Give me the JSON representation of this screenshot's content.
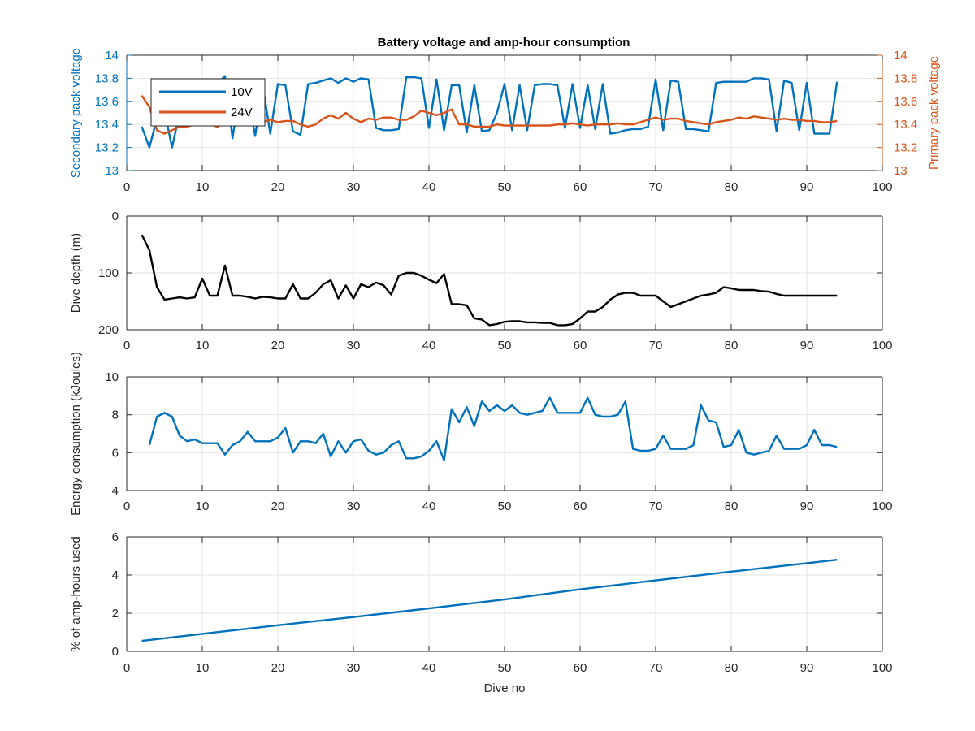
{
  "figure": {
    "title": "Battery voltage and amp-hour consumption"
  },
  "colors": {
    "blue": "#0072BD",
    "orange": "#D95319",
    "black": "#000000",
    "grid": "#e3e3e3",
    "axis": "#262626"
  },
  "chart_data": [
    {
      "type": "line",
      "title": "Battery voltage and amp-hour consumption",
      "xlabel": "",
      "ylabel": "Secondary pack voltage",
      "ylabel_right": "Primary pack voltage",
      "xlim": [
        0,
        100
      ],
      "ylim": [
        13,
        14
      ],
      "ylim_right": [
        13,
        14
      ],
      "xticks": [
        0,
        10,
        20,
        30,
        40,
        50,
        60,
        70,
        80,
        90,
        100
      ],
      "yticks": [
        13,
        13.2,
        13.4,
        13.6,
        13.8,
        14
      ],
      "yticks_right": [
        13,
        13.2,
        13.4,
        13.6,
        13.8,
        14
      ],
      "grid": true,
      "legend": "top-left",
      "series": [
        {
          "name": "10V",
          "axis": "left",
          "color": "#0072BD",
          "x": [
            2,
            3,
            4,
            5,
            6,
            7,
            8,
            9,
            10,
            11,
            12,
            13,
            14,
            15,
            16,
            17,
            18,
            19,
            20,
            21,
            22,
            23,
            24,
            25,
            26,
            27,
            28,
            29,
            30,
            31,
            32,
            33,
            34,
            35,
            36,
            37,
            38,
            39,
            40,
            41,
            42,
            43,
            44,
            45,
            46,
            47,
            48,
            49,
            50,
            51,
            52,
            53,
            54,
            55,
            56,
            57,
            58,
            59,
            60,
            61,
            62,
            63,
            64,
            65,
            66,
            67,
            68,
            69,
            70,
            71,
            72,
            73,
            74,
            75,
            76,
            77,
            78,
            79,
            80,
            81,
            82,
            83,
            84,
            85,
            86,
            87,
            88,
            89,
            90,
            91,
            92,
            93,
            94
          ],
          "values": [
            13.38,
            13.2,
            13.45,
            13.52,
            13.2,
            13.5,
            13.45,
            13.58,
            13.62,
            13.7,
            13.75,
            13.82,
            13.28,
            13.72,
            13.66,
            13.3,
            13.74,
            13.32,
            13.75,
            13.74,
            13.34,
            13.31,
            13.75,
            13.76,
            13.78,
            13.8,
            13.76,
            13.8,
            13.77,
            13.8,
            13.79,
            13.37,
            13.35,
            13.35,
            13.36,
            13.81,
            13.81,
            13.8,
            13.37,
            13.79,
            13.35,
            13.74,
            13.74,
            13.33,
            13.74,
            13.34,
            13.35,
            13.5,
            13.75,
            13.35,
            13.74,
            13.35,
            13.74,
            13.75,
            13.75,
            13.74,
            13.37,
            13.75,
            13.37,
            13.74,
            13.36,
            13.75,
            13.32,
            13.33,
            13.35,
            13.36,
            13.36,
            13.38,
            13.79,
            13.35,
            13.78,
            13.77,
            13.36,
            13.36,
            13.35,
            13.34,
            13.76,
            13.77,
            13.77,
            13.77,
            13.77,
            13.8,
            13.8,
            13.79,
            13.34,
            13.78,
            13.76,
            13.35,
            13.76,
            13.32,
            13.32,
            13.32,
            13.77
          ]
        },
        {
          "name": "24V",
          "axis": "right",
          "color": "#D95319",
          "x": [
            2,
            3,
            4,
            5,
            6,
            7,
            8,
            9,
            10,
            11,
            12,
            13,
            14,
            15,
            16,
            17,
            18,
            19,
            20,
            21,
            22,
            23,
            24,
            25,
            26,
            27,
            28,
            29,
            30,
            31,
            32,
            33,
            34,
            35,
            36,
            37,
            38,
            39,
            40,
            41,
            42,
            43,
            44,
            45,
            46,
            47,
            48,
            49,
            50,
            51,
            52,
            53,
            54,
            55,
            56,
            57,
            58,
            59,
            60,
            61,
            62,
            63,
            64,
            65,
            66,
            67,
            68,
            69,
            70,
            71,
            72,
            73,
            74,
            75,
            76,
            77,
            78,
            79,
            80,
            81,
            82,
            83,
            84,
            85,
            86,
            87,
            88,
            89,
            90,
            91,
            92,
            93,
            94
          ],
          "values": [
            13.65,
            13.55,
            13.35,
            13.32,
            13.35,
            13.38,
            13.38,
            13.4,
            13.4,
            13.4,
            13.38,
            13.42,
            13.42,
            13.4,
            13.45,
            13.42,
            13.42,
            13.44,
            13.42,
            13.43,
            13.43,
            13.4,
            13.38,
            13.4,
            13.45,
            13.48,
            13.45,
            13.5,
            13.45,
            13.42,
            13.45,
            13.44,
            13.46,
            13.46,
            13.44,
            13.44,
            13.47,
            13.52,
            13.5,
            13.48,
            13.5,
            13.53,
            13.4,
            13.4,
            13.38,
            13.38,
            13.38,
            13.4,
            13.39,
            13.39,
            13.39,
            13.39,
            13.39,
            13.39,
            13.39,
            13.4,
            13.4,
            13.41,
            13.4,
            13.39,
            13.4,
            13.4,
            13.4,
            13.41,
            13.4,
            13.4,
            13.42,
            13.44,
            13.46,
            13.44,
            13.45,
            13.45,
            13.43,
            13.42,
            13.41,
            13.4,
            13.42,
            13.43,
            13.44,
            13.46,
            13.45,
            13.47,
            13.46,
            13.45,
            13.44,
            13.45,
            13.44,
            13.44,
            13.43,
            13.43,
            13.42,
            13.42,
            13.43
          ]
        }
      ]
    },
    {
      "type": "line",
      "xlabel": "",
      "ylabel": "Dive depth (m)",
      "xlim": [
        0,
        100
      ],
      "ylim": [
        0,
        200
      ],
      "y_reversed": true,
      "xticks": [
        0,
        10,
        20,
        30,
        40,
        50,
        60,
        70,
        80,
        90,
        100
      ],
      "yticks": [
        0,
        100,
        200
      ],
      "grid": true,
      "series": [
        {
          "color": "#000000",
          "x": [
            2,
            3,
            4,
            5,
            6,
            7,
            8,
            9,
            10,
            11,
            12,
            13,
            14,
            15,
            16,
            17,
            18,
            19,
            20,
            21,
            22,
            23,
            24,
            25,
            26,
            27,
            28,
            29,
            30,
            31,
            32,
            33,
            34,
            35,
            36,
            37,
            38,
            39,
            40,
            41,
            42,
            43,
            44,
            45,
            46,
            47,
            48,
            49,
            50,
            51,
            52,
            53,
            54,
            55,
            56,
            57,
            58,
            59,
            60,
            61,
            62,
            63,
            64,
            65,
            66,
            67,
            68,
            69,
            70,
            71,
            72,
            73,
            74,
            75,
            76,
            77,
            78,
            79,
            80,
            81,
            82,
            83,
            84,
            85,
            86,
            87,
            88,
            89,
            90,
            91,
            92,
            93,
            94
          ],
          "values": [
            33,
            60,
            125,
            147,
            145,
            143,
            145,
            143,
            110,
            140,
            140,
            87,
            140,
            140,
            142,
            145,
            142,
            143,
            145,
            145,
            120,
            145,
            145,
            135,
            120,
            113,
            145,
            122,
            145,
            120,
            125,
            117,
            122,
            138,
            105,
            100,
            100,
            105,
            112,
            118,
            102,
            155,
            155,
            157,
            180,
            182,
            192,
            190,
            186,
            185,
            185,
            187,
            187,
            188,
            188,
            192,
            192,
            190,
            180,
            168,
            168,
            160,
            147,
            138,
            135,
            135,
            140,
            140,
            140,
            150,
            160,
            155,
            150,
            145,
            140,
            138,
            135,
            125,
            127,
            130,
            130,
            130,
            132,
            133,
            137,
            140,
            140,
            140,
            140,
            140,
            140,
            140,
            140
          ]
        }
      ]
    },
    {
      "type": "line",
      "xlabel": "",
      "ylabel": "Energy consumption (kJoules)",
      "xlim": [
        0,
        100
      ],
      "ylim": [
        4,
        10
      ],
      "xticks": [
        0,
        10,
        20,
        30,
        40,
        50,
        60,
        70,
        80,
        90,
        100
      ],
      "yticks": [
        4,
        6,
        8,
        10
      ],
      "grid": true,
      "series": [
        {
          "color": "#0072BD",
          "x": [
            3,
            4,
            5,
            6,
            7,
            8,
            9,
            10,
            11,
            12,
            13,
            14,
            15,
            16,
            17,
            18,
            19,
            20,
            21,
            22,
            23,
            24,
            25,
            26,
            27,
            28,
            29,
            30,
            31,
            32,
            33,
            34,
            35,
            36,
            37,
            38,
            39,
            40,
            41,
            42,
            43,
            44,
            45,
            46,
            47,
            48,
            49,
            50,
            51,
            52,
            53,
            54,
            55,
            56,
            57,
            58,
            59,
            60,
            61,
            62,
            63,
            64,
            65,
            66,
            67,
            68,
            69,
            70,
            71,
            72,
            73,
            74,
            75,
            76,
            77,
            78,
            79,
            80,
            81,
            82,
            83,
            84,
            85,
            86,
            87,
            88,
            89,
            90,
            91,
            92,
            93,
            94
          ],
          "values": [
            6.4,
            7.9,
            8.1,
            7.9,
            6.9,
            6.6,
            6.7,
            6.5,
            6.5,
            6.5,
            5.9,
            6.4,
            6.6,
            7.1,
            6.6,
            6.6,
            6.6,
            6.8,
            7.3,
            6.0,
            6.6,
            6.6,
            6.5,
            7.0,
            5.8,
            6.6,
            6.0,
            6.6,
            6.7,
            6.1,
            5.9,
            6.0,
            6.4,
            6.6,
            5.7,
            5.7,
            5.8,
            6.1,
            6.6,
            5.6,
            8.3,
            7.6,
            8.4,
            7.4,
            8.7,
            8.2,
            8.5,
            8.2,
            8.5,
            8.1,
            8.0,
            8.1,
            8.2,
            8.9,
            8.1,
            8.1,
            8.1,
            8.1,
            8.9,
            8.0,
            7.9,
            7.9,
            8.0,
            8.7,
            6.2,
            6.1,
            6.1,
            6.2,
            6.9,
            6.2,
            6.2,
            6.2,
            6.4,
            8.5,
            7.7,
            7.6,
            6.3,
            6.4,
            7.2,
            6.0,
            5.9,
            6.0,
            6.1,
            6.9,
            6.2,
            6.2,
            6.2,
            6.4,
            7.2,
            6.4,
            6.4,
            6.3
          ]
        }
      ]
    },
    {
      "type": "line",
      "xlabel": "Dive no",
      "ylabel": "% of amp-hours used",
      "xlim": [
        0,
        100
      ],
      "ylim": [
        0,
        6
      ],
      "xticks": [
        0,
        10,
        20,
        30,
        40,
        50,
        60,
        70,
        80,
        90,
        100
      ],
      "yticks": [
        0,
        2,
        4,
        6
      ],
      "grid": true,
      "series": [
        {
          "color": "#0072BD",
          "x": [
            2,
            10,
            20,
            30,
            40,
            50,
            60,
            70,
            80,
            90,
            94
          ],
          "values": [
            0.55,
            0.92,
            1.37,
            1.8,
            2.25,
            2.72,
            3.25,
            3.72,
            4.18,
            4.62,
            4.8
          ]
        }
      ]
    }
  ]
}
